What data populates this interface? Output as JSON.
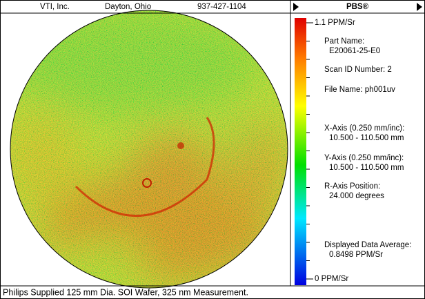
{
  "header": {
    "company": "VTI, Inc.",
    "location": "Dayton, Ohio",
    "phone": "937-427-1104",
    "panel_title": "PBS®"
  },
  "colorbar": {
    "max_label": "1.1 PPM/Sr",
    "min_label": "0 PPM/Sr"
  },
  "info": [
    [
      "Part Name:",
      "E20061-25-E0"
    ],
    [
      "Scan ID Number: 2"
    ],
    [
      "File Name: ph001uv"
    ],
    [
      "X-Axis (0.250 mm/inc):",
      "10.500 - 110.500 mm"
    ],
    [
      "Y-Axis (0.250 mm/inc):",
      "10.500 - 110.500 mm"
    ],
    [
      "R-Axis Position:",
      "24.000 degrees"
    ],
    [
      "Displayed Data Average:",
      "0.8498 PPM/Sr"
    ]
  ],
  "footer": {
    "caption": "Philips Supplied 125 mm Dia. SOI Wafer, 325 nm Measurement."
  }
}
